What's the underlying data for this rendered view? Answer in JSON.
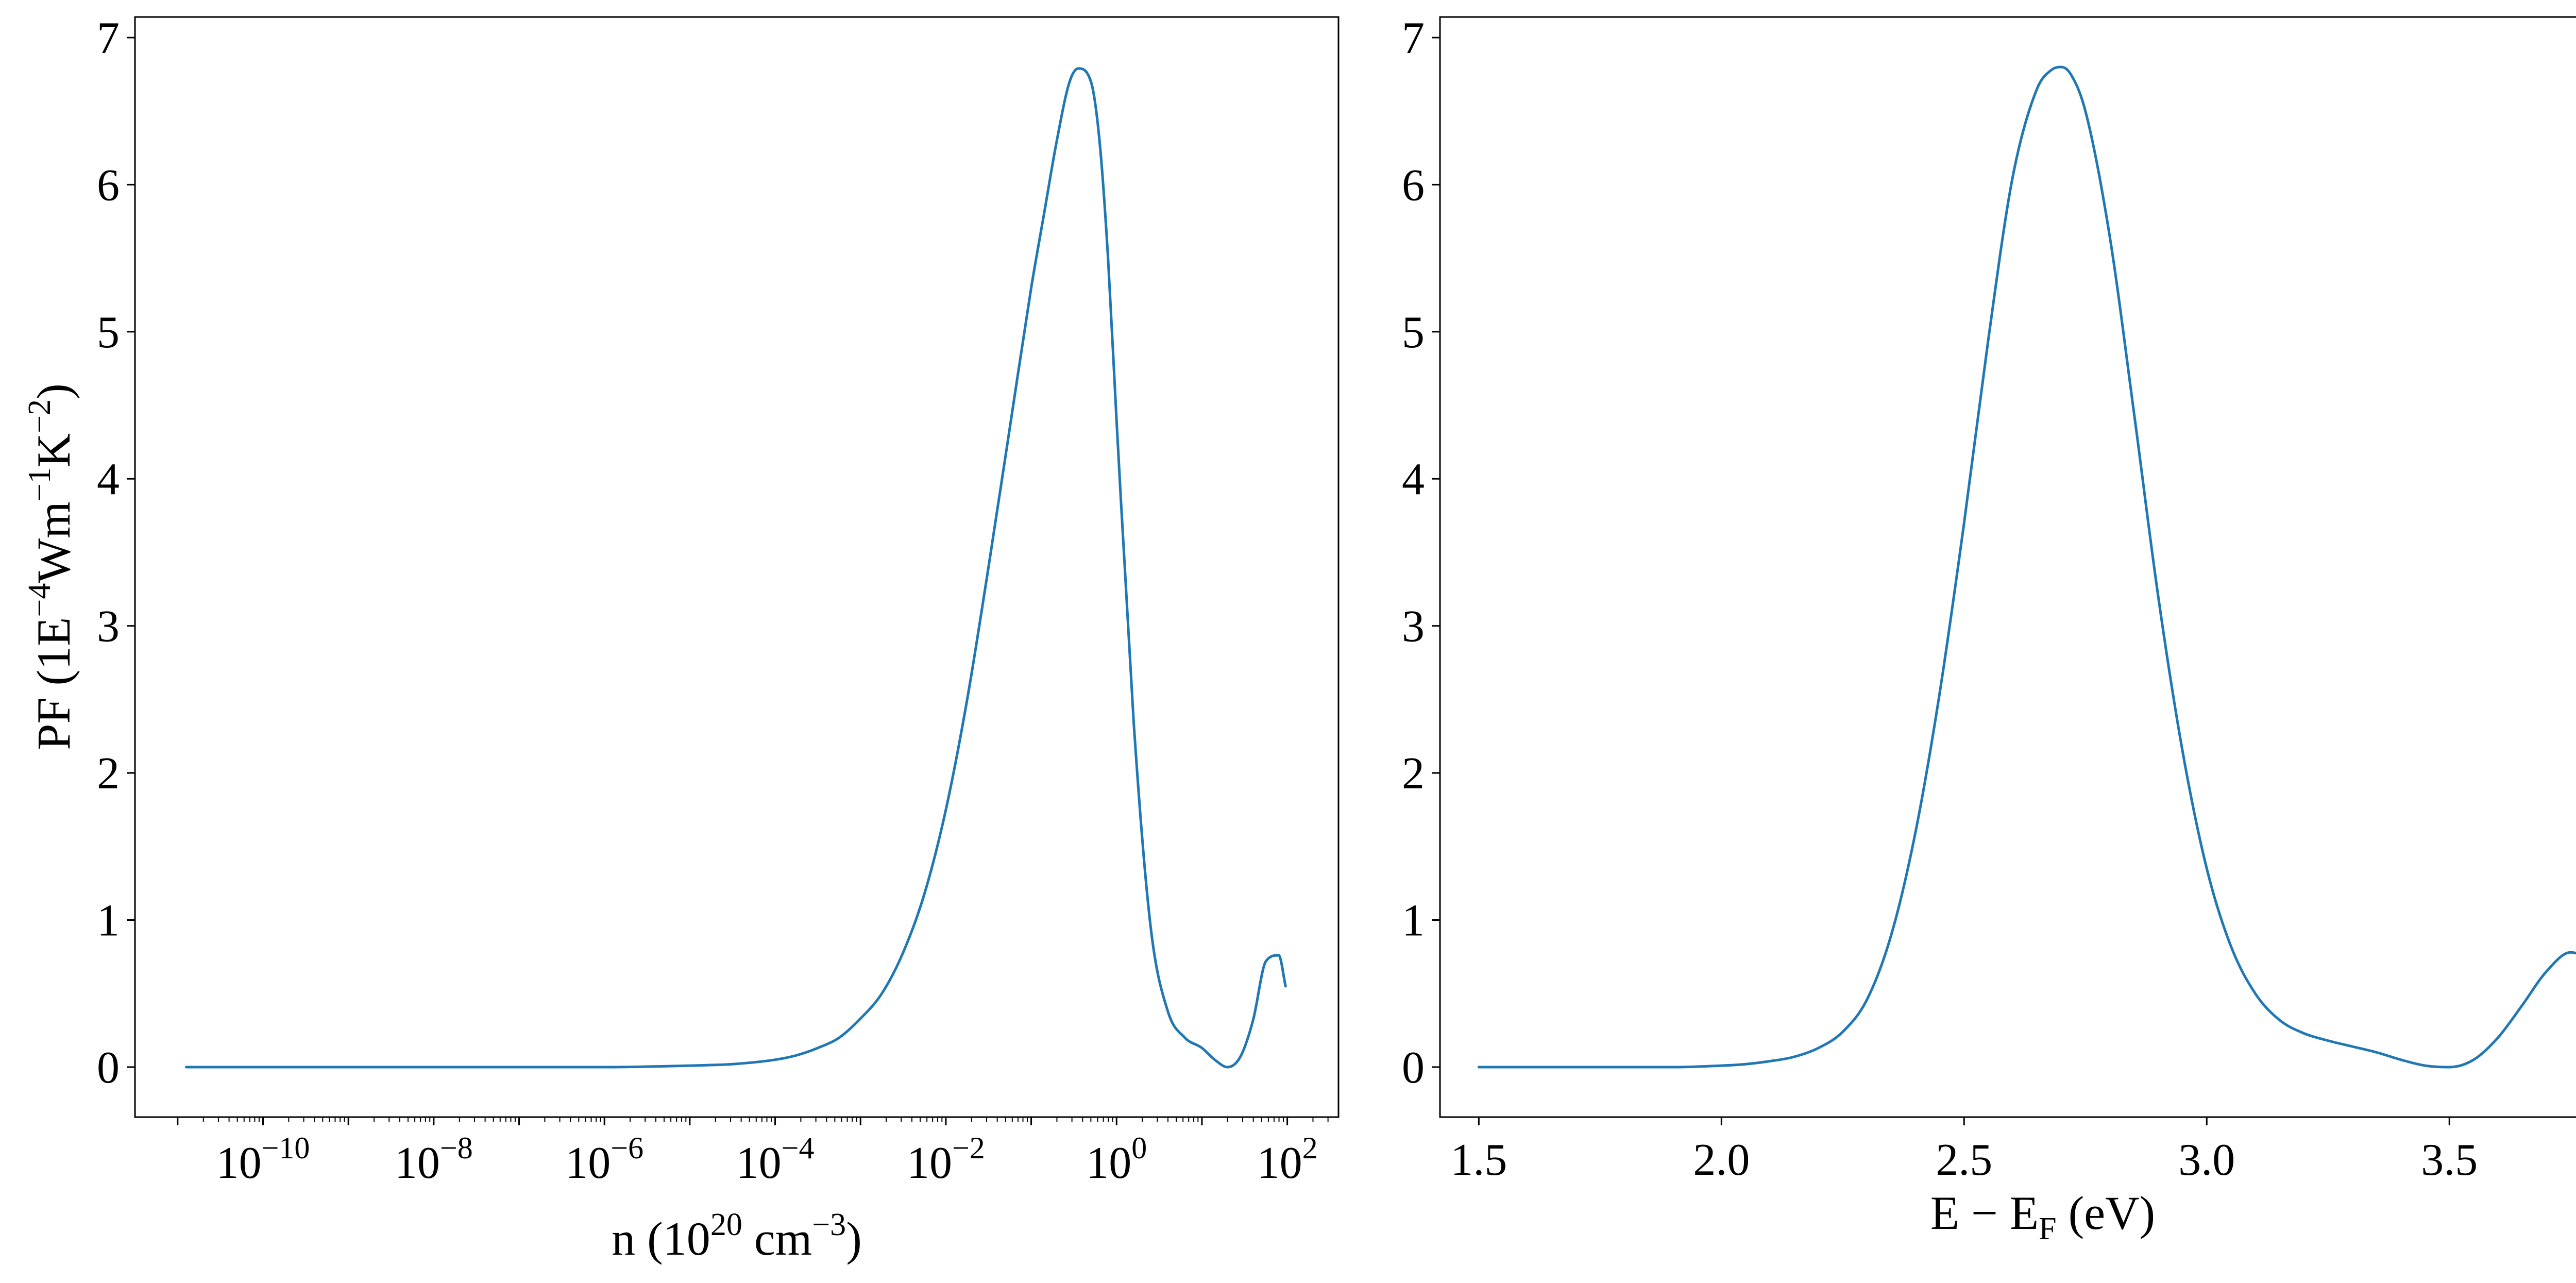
{
  "chart_data": [
    {
      "type": "line",
      "title": "",
      "xlabel": {
        "base": "n (10",
        "sup1": "20",
        "mid": " cm",
        "sup2": "−3",
        "end": ")"
      },
      "ylabel": {
        "base": "PF (1E",
        "sup1": "−4",
        "mid1": "Wm",
        "sup2": "−1",
        "mid2": "K",
        "sup3": "−2",
        "end": ")"
      },
      "xscale": "log",
      "xlim_log10": [
        -11.5,
        2.6
      ],
      "ylim": [
        -0.34,
        7.14
      ],
      "xticks": [
        {
          "exp": -10,
          "base": "10",
          "sup": "−10"
        },
        {
          "exp": -8,
          "base": "10",
          "sup": "−8"
        },
        {
          "exp": -6,
          "base": "10",
          "sup": "−6"
        },
        {
          "exp": -4,
          "base": "10",
          "sup": "−4"
        },
        {
          "exp": -2,
          "base": "10",
          "sup": "−2"
        },
        {
          "exp": 0,
          "base": "10",
          "sup": "0"
        },
        {
          "exp": 2,
          "base": "10",
          "sup": "2"
        }
      ],
      "yticks": [
        0,
        1,
        2,
        3,
        4,
        5,
        6,
        7
      ],
      "grid": false,
      "series": [
        {
          "color": "#1f77b4",
          "x_log10": [
            -10.9,
            -9,
            -8,
            -7,
            -6,
            -5,
            -4.5,
            -4,
            -3.75,
            -3.5,
            -3.25,
            -3,
            -2.75,
            -2.5,
            -2.25,
            -2,
            -1.75,
            -1.5,
            -1.25,
            -1,
            -0.85,
            -0.7,
            -0.55,
            -0.45,
            -0.3,
            -0.2,
            -0.1,
            0,
            0.2,
            0.4,
            0.6,
            0.8,
            1.0,
            1.15,
            1.3,
            1.45,
            1.6,
            1.75,
            1.9,
            1.98
          ],
          "y": [
            0,
            0,
            0,
            0,
            0,
            0.01,
            0.02,
            0.05,
            0.08,
            0.13,
            0.2,
            0.33,
            0.5,
            0.78,
            1.18,
            1.75,
            2.5,
            3.4,
            4.35,
            5.3,
            5.8,
            6.3,
            6.7,
            6.79,
            6.7,
            6.3,
            5.5,
            4.4,
            2.35,
            0.95,
            0.38,
            0.2,
            0.13,
            0.05,
            0.0,
            0.07,
            0.32,
            0.72,
            0.76,
            0.55
          ]
        }
      ]
    },
    {
      "type": "line",
      "title": "",
      "xlabel": {
        "base": "E − E",
        "sub": "F",
        "end": " (eV)"
      },
      "ylabel": "",
      "xlim": [
        1.42,
        3.9
      ],
      "ylim": [
        -0.34,
        7.14
      ],
      "xticks": [
        "1.5",
        "2.0",
        "2.5",
        "3.0",
        "3.5"
      ],
      "yticks": [
        0,
        1,
        2,
        3,
        4,
        5,
        6,
        7
      ],
      "grid": false,
      "series": [
        {
          "color": "#1f77b4",
          "x": [
            1.5,
            1.8,
            1.9,
            2.0,
            2.05,
            2.1,
            2.15,
            2.2,
            2.25,
            2.3,
            2.35,
            2.4,
            2.45,
            2.5,
            2.55,
            2.6,
            2.65,
            2.68,
            2.7,
            2.72,
            2.75,
            2.8,
            2.85,
            2.9,
            2.95,
            3.0,
            3.05,
            3.1,
            3.15,
            3.2,
            3.25,
            3.3,
            3.35,
            3.4,
            3.45,
            3.5,
            3.55,
            3.6,
            3.65,
            3.7,
            3.75,
            3.8,
            3.83
          ],
          "y": [
            0,
            0,
            0,
            0.01,
            0.02,
            0.04,
            0.07,
            0.13,
            0.24,
            0.46,
            0.9,
            1.6,
            2.55,
            3.7,
            4.95,
            6.05,
            6.65,
            6.78,
            6.8,
            6.75,
            6.5,
            5.65,
            4.45,
            3.2,
            2.15,
            1.35,
            0.82,
            0.5,
            0.32,
            0.23,
            0.18,
            0.14,
            0.1,
            0.05,
            0.01,
            0.0,
            0.05,
            0.2,
            0.42,
            0.65,
            0.78,
            0.68,
            0.54
          ]
        }
      ]
    }
  ]
}
